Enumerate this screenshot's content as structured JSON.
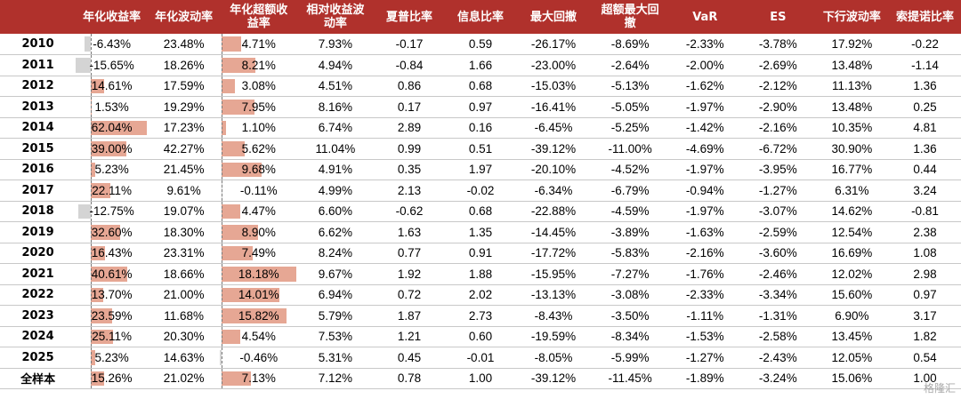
{
  "table": {
    "headers": [
      "",
      "年化收益率",
      "年化波动率",
      "年化超额收\n益率",
      "相对收益波\n动率",
      "夏普比率",
      "信息比率",
      "最大回撤",
      "超额最大回\n撤",
      "VaR",
      "ES",
      "下行波动率",
      "索提诺比率"
    ],
    "rows": [
      {
        "year": "2010",
        "ret": "-6.43%",
        "ret_v": -6.43,
        "vol": "23.48%",
        "exc": "4.71%",
        "exc_v": 4.71,
        "rvol": "7.93%",
        "sharpe": "-0.17",
        "ir": "0.59",
        "mdd": "-26.17%",
        "emdd": "-8.69%",
        "var": "-2.33%",
        "es": "-3.78%",
        "dvol": "17.92%",
        "sortino": "-0.22"
      },
      {
        "year": "2011",
        "ret": "-15.65%",
        "ret_v": -15.65,
        "vol": "18.26%",
        "exc": "8.21%",
        "exc_v": 8.21,
        "rvol": "4.94%",
        "sharpe": "-0.84",
        "ir": "1.66",
        "mdd": "-23.00%",
        "emdd": "-2.64%",
        "var": "-2.00%",
        "es": "-2.69%",
        "dvol": "13.48%",
        "sortino": "-1.14"
      },
      {
        "year": "2012",
        "ret": "14.61%",
        "ret_v": 14.61,
        "vol": "17.59%",
        "exc": "3.08%",
        "exc_v": 3.08,
        "rvol": "4.51%",
        "sharpe": "0.86",
        "ir": "0.68",
        "mdd": "-15.03%",
        "emdd": "-5.13%",
        "var": "-1.62%",
        "es": "-2.12%",
        "dvol": "11.13%",
        "sortino": "1.36"
      },
      {
        "year": "2013",
        "ret": "1.53%",
        "ret_v": 1.53,
        "vol": "19.29%",
        "exc": "7.95%",
        "exc_v": 7.95,
        "rvol": "8.16%",
        "sharpe": "0.17",
        "ir": "0.97",
        "mdd": "-16.41%",
        "emdd": "-5.05%",
        "var": "-1.97%",
        "es": "-2.90%",
        "dvol": "13.48%",
        "sortino": "0.25"
      },
      {
        "year": "2014",
        "ret": "62.04%",
        "ret_v": 62.04,
        "vol": "17.23%",
        "exc": "1.10%",
        "exc_v": 1.1,
        "rvol": "6.74%",
        "sharpe": "2.89",
        "ir": "0.16",
        "mdd": "-6.45%",
        "emdd": "-5.25%",
        "var": "-1.42%",
        "es": "-2.16%",
        "dvol": "10.35%",
        "sortino": "4.81"
      },
      {
        "year": "2015",
        "ret": "39.00%",
        "ret_v": 39.0,
        "vol": "42.27%",
        "exc": "5.62%",
        "exc_v": 5.62,
        "rvol": "11.04%",
        "sharpe": "0.99",
        "ir": "0.51",
        "mdd": "-39.12%",
        "emdd": "-11.00%",
        "var": "-4.69%",
        "es": "-6.72%",
        "dvol": "30.90%",
        "sortino": "1.36"
      },
      {
        "year": "2016",
        "ret": "5.23%",
        "ret_v": 5.23,
        "vol": "21.45%",
        "exc": "9.68%",
        "exc_v": 9.68,
        "rvol": "4.91%",
        "sharpe": "0.35",
        "ir": "1.97",
        "mdd": "-20.10%",
        "emdd": "-4.52%",
        "var": "-1.97%",
        "es": "-3.95%",
        "dvol": "16.77%",
        "sortino": "0.44"
      },
      {
        "year": "2017",
        "ret": "22.11%",
        "ret_v": 22.11,
        "vol": "9.61%",
        "exc": "-0.11%",
        "exc_v": -0.11,
        "rvol": "4.99%",
        "sharpe": "2.13",
        "ir": "-0.02",
        "mdd": "-6.34%",
        "emdd": "-6.79%",
        "var": "-0.94%",
        "es": "-1.27%",
        "dvol": "6.31%",
        "sortino": "3.24"
      },
      {
        "year": "2018",
        "ret": "-12.75%",
        "ret_v": -12.75,
        "vol": "19.07%",
        "exc": "4.47%",
        "exc_v": 4.47,
        "rvol": "6.60%",
        "sharpe": "-0.62",
        "ir": "0.68",
        "mdd": "-22.88%",
        "emdd": "-4.59%",
        "var": "-1.97%",
        "es": "-3.07%",
        "dvol": "14.62%",
        "sortino": "-0.81"
      },
      {
        "year": "2019",
        "ret": "32.60%",
        "ret_v": 32.6,
        "vol": "18.30%",
        "exc": "8.90%",
        "exc_v": 8.9,
        "rvol": "6.62%",
        "sharpe": "1.63",
        "ir": "1.35",
        "mdd": "-14.45%",
        "emdd": "-3.89%",
        "var": "-1.63%",
        "es": "-2.59%",
        "dvol": "12.54%",
        "sortino": "2.38"
      },
      {
        "year": "2020",
        "ret": "16.43%",
        "ret_v": 16.43,
        "vol": "23.31%",
        "exc": "7.49%",
        "exc_v": 7.49,
        "rvol": "8.24%",
        "sharpe": "0.77",
        "ir": "0.91",
        "mdd": "-17.72%",
        "emdd": "-5.83%",
        "var": "-2.16%",
        "es": "-3.60%",
        "dvol": "16.69%",
        "sortino": "1.08"
      },
      {
        "year": "2021",
        "ret": "40.61%",
        "ret_v": 40.61,
        "vol": "18.66%",
        "exc": "18.18%",
        "exc_v": 18.18,
        "rvol": "9.67%",
        "sharpe": "1.92",
        "ir": "1.88",
        "mdd": "-15.95%",
        "emdd": "-7.27%",
        "var": "-1.76%",
        "es": "-2.46%",
        "dvol": "12.02%",
        "sortino": "2.98"
      },
      {
        "year": "2022",
        "ret": "13.70%",
        "ret_v": 13.7,
        "vol": "21.00%",
        "exc": "14.01%",
        "exc_v": 14.01,
        "rvol": "6.94%",
        "sharpe": "0.72",
        "ir": "2.02",
        "mdd": "-13.13%",
        "emdd": "-3.08%",
        "var": "-2.33%",
        "es": "-3.34%",
        "dvol": "15.60%",
        "sortino": "0.97"
      },
      {
        "year": "2023",
        "ret": "23.59%",
        "ret_v": 23.59,
        "vol": "11.68%",
        "exc": "15.82%",
        "exc_v": 15.82,
        "rvol": "5.79%",
        "sharpe": "1.87",
        "ir": "2.73",
        "mdd": "-8.43%",
        "emdd": "-3.50%",
        "var": "-1.11%",
        "es": "-1.31%",
        "dvol": "6.90%",
        "sortino": "3.17"
      },
      {
        "year": "2024",
        "ret": "25.11%",
        "ret_v": 25.11,
        "vol": "20.30%",
        "exc": "4.54%",
        "exc_v": 4.54,
        "rvol": "7.53%",
        "sharpe": "1.21",
        "ir": "0.60",
        "mdd": "-19.59%",
        "emdd": "-8.34%",
        "var": "-1.53%",
        "es": "-2.58%",
        "dvol": "13.45%",
        "sortino": "1.82"
      },
      {
        "year": "2025",
        "ret": "5.23%",
        "ret_v": 5.23,
        "vol": "14.63%",
        "exc": "-0.46%",
        "exc_v": -0.46,
        "rvol": "5.31%",
        "sharpe": "0.45",
        "ir": "-0.01",
        "mdd": "-8.05%",
        "emdd": "-5.99%",
        "var": "-1.27%",
        "es": "-2.43%",
        "dvol": "12.05%",
        "sortino": "0.54"
      },
      {
        "year": "全样本",
        "ret": "15.26%",
        "ret_v": 15.26,
        "vol": "21.02%",
        "exc": "7.13%",
        "exc_v": 7.13,
        "rvol": "7.12%",
        "sharpe": "0.78",
        "ir": "1.00",
        "mdd": "-39.12%",
        "emdd": "-11.45%",
        "var": "-1.89%",
        "es": "-3.24%",
        "dvol": "15.06%",
        "sortino": "1.00"
      }
    ]
  },
  "watermark": "格隆汇",
  "colors": {
    "header_bg": "#b0312c",
    "bar_pos": "#e6a794",
    "bar_neg": "#d4d4d4"
  },
  "bar_scale": {
    "ret_min": -16,
    "ret_max": 63,
    "exc_min": -0.5,
    "exc_max": 18.5
  }
}
